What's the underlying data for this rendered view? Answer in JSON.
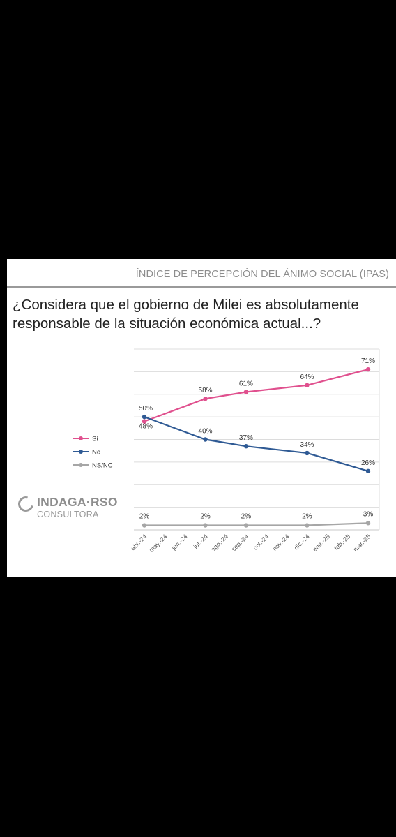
{
  "header": {
    "title": "ÍNDICE DE PERCEPCIÓN DEL ÁNIMO SOCIAL (IPAS)"
  },
  "question_line1": "¿Considera que el gobierno de Milei es absolutamente",
  "question_line2": "responsable de la situación económica actual...?",
  "logo": {
    "name": "INDAGA·RSO",
    "subtitle": "CONSULTORA"
  },
  "chart_data": {
    "type": "line",
    "title": "",
    "xlabel": "",
    "ylabel": "",
    "categories": [
      "abr.-24",
      "may.-24",
      "jun.-24",
      "jul.-24",
      "ago.-24",
      "sep.-24",
      "oct.-24",
      "nov.-24",
      "dic.-24",
      "ene.-25",
      "feb.-25",
      "mar.-25"
    ],
    "ylim": [
      0,
      80
    ],
    "grid": true,
    "legend_position": "left",
    "series": [
      {
        "name": "Si",
        "color": "#e0508e",
        "values": [
          48,
          null,
          null,
          58,
          null,
          61,
          null,
          null,
          64,
          null,
          null,
          71
        ],
        "labels": [
          "48%",
          null,
          null,
          "58%",
          null,
          "61%",
          null,
          null,
          "64%",
          null,
          null,
          "71%"
        ]
      },
      {
        "name": "No",
        "color": "#2f5a94",
        "values": [
          50,
          null,
          null,
          40,
          null,
          37,
          null,
          null,
          34,
          null,
          null,
          26
        ],
        "labels": [
          "50%",
          null,
          null,
          "40%",
          null,
          "37%",
          null,
          null,
          "34%",
          null,
          null,
          "26%"
        ]
      },
      {
        "name": "NS/NC",
        "color": "#a6a6a6",
        "values": [
          2,
          null,
          null,
          2,
          null,
          2,
          null,
          null,
          2,
          null,
          null,
          3
        ],
        "labels": [
          "2%",
          null,
          null,
          "2%",
          null,
          "2%",
          null,
          null,
          "2%",
          null,
          null,
          "3%"
        ]
      }
    ]
  }
}
